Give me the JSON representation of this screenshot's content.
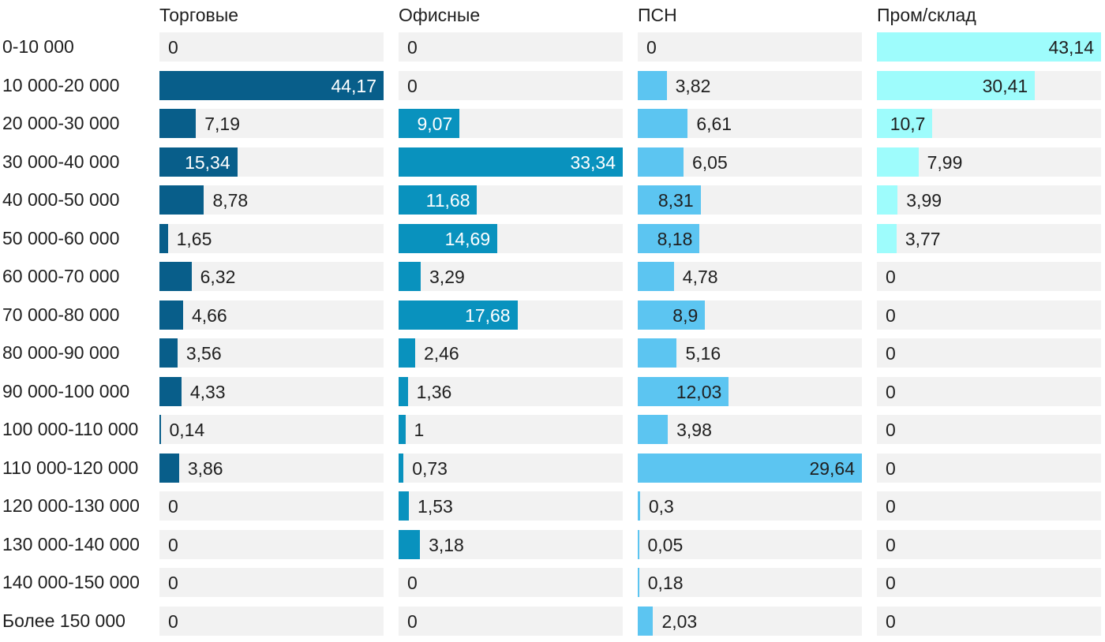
{
  "chart_data": {
    "type": "bar",
    "orientation": "horizontal",
    "value_format": "comma-decimal",
    "grid": false,
    "column_headers_position": "top",
    "track_color": "#f2f2f2",
    "text_color": "#1f1f1f",
    "scaling_note": "each column scaled independently so its max value fills the track",
    "categories": [
      "0-10 000",
      "10 000-20 000",
      "20 000-30 000",
      "30 000-40 000",
      "40 000-50 000",
      "50 000-60 000",
      "60 000-70 000",
      "70 000-80 000",
      "80 000-90 000",
      "90 000-100 000",
      "100 000-110 000",
      "110 000-120 000",
      "120 000-130 000",
      "130 000-140 000",
      "140 000-150 000",
      "Более 150 000"
    ],
    "series": [
      {
        "name": "Торговые",
        "color": "#085e8a",
        "inside_label_color": "#ffffff",
        "axis_max": 44.17,
        "values": [
          0,
          44.17,
          7.19,
          15.34,
          8.78,
          1.65,
          6.32,
          4.66,
          3.56,
          4.33,
          0.14,
          3.86,
          0,
          0,
          0,
          0
        ],
        "labels": [
          "0",
          "44,17",
          "7,19",
          "15,34",
          "8,78",
          "1,65",
          "6,32",
          "4,66",
          "3,56",
          "4,33",
          "0,14",
          "3,86",
          "0",
          "0",
          "0",
          "0"
        ]
      },
      {
        "name": "Офисные",
        "color": "#0992be",
        "inside_label_color": "#ffffff",
        "axis_max": 33.34,
        "values": [
          0,
          0,
          9.07,
          33.34,
          11.68,
          14.69,
          3.29,
          17.68,
          2.46,
          1.36,
          1,
          0.73,
          1.53,
          3.18,
          0,
          0
        ],
        "labels": [
          "0",
          "0",
          "9,07",
          "33,34",
          "11,68",
          "14,69",
          "3,29",
          "17,68",
          "2,46",
          "1,36",
          "1",
          "0,73",
          "1,53",
          "3,18",
          "0",
          "0"
        ]
      },
      {
        "name": "ПСН",
        "color": "#5cc5f1",
        "inside_label_color": "#1f1f1f",
        "axis_max": 29.64,
        "values": [
          0,
          3.82,
          6.61,
          6.05,
          8.31,
          8.18,
          4.78,
          8.9,
          5.16,
          12.03,
          3.98,
          29.64,
          0.3,
          0.05,
          0.18,
          2.03
        ],
        "labels": [
          "0",
          "3,82",
          "6,61",
          "6,05",
          "8,31",
          "8,18",
          "4,78",
          "8,9",
          "5,16",
          "12,03",
          "3,98",
          "29,64",
          "0,3",
          "0,05",
          "0,18",
          "2,03"
        ]
      },
      {
        "name": "Пром/склад",
        "color": "#9efcfc",
        "inside_label_color": "#1f1f1f",
        "axis_max": 43.14,
        "values": [
          43.14,
          30.41,
          10.7,
          7.99,
          3.99,
          3.77,
          0,
          0,
          0,
          0,
          0,
          0,
          0,
          0,
          0,
          0
        ],
        "labels": [
          "43,14",
          "30,41",
          "10,7",
          "7,99",
          "3,99",
          "3,77",
          "0",
          "0",
          "0",
          "0",
          "0",
          "0",
          "0",
          "0",
          "0",
          "0"
        ]
      }
    ]
  }
}
